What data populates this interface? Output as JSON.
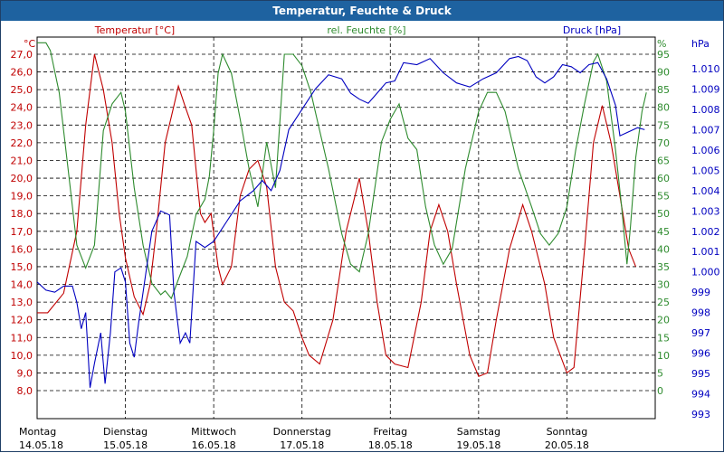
{
  "window": {
    "title": "Temperatur, Feuchte & Druck"
  },
  "colors": {
    "temperature": "#c00000",
    "humidity": "#2e8b2e",
    "pressure": "#0000c0",
    "grid": "#000000"
  },
  "chart_data": {
    "type": "line",
    "title": "Temperatur, Feuchte & Druck",
    "grid": true,
    "axes": {
      "temperature": {
        "label": "Temperatur [°C]",
        "unit": "°C",
        "range": [
          8.0,
          27.0
        ],
        "ticks": [
          "8,0",
          "9,0",
          "10,0",
          "11,0",
          "12,0",
          "13,0",
          "14,0",
          "15,0",
          "16,0",
          "17,0",
          "18,0",
          "19,0",
          "20,0",
          "21,0",
          "22,0",
          "23,0",
          "24,0",
          "25,0",
          "26,0",
          "27,0"
        ]
      },
      "humidity": {
        "label": "rel. Feuchte [%]",
        "unit": "%",
        "range": [
          0,
          95
        ],
        "ticks": [
          "0",
          "5",
          "10",
          "15",
          "20",
          "25",
          "30",
          "35",
          "40",
          "45",
          "50",
          "55",
          "60",
          "65",
          "70",
          "75",
          "80",
          "85",
          "90",
          "95"
        ]
      },
      "pressure": {
        "label": "Druck [hPa]",
        "unit": "hPa",
        "range": [
          993,
          1010
        ],
        "ticks": [
          "993",
          "994",
          "995",
          "996",
          "997",
          "998",
          "999",
          "1.000",
          "1.001",
          "1.002",
          "1.003",
          "1.004",
          "1.005",
          "1.006",
          "1.007",
          "1.008",
          "1.009",
          "1.010"
        ]
      }
    },
    "days": [
      {
        "name": "Montag",
        "date": "14.05.18"
      },
      {
        "name": "Dienstag",
        "date": "15.05.18"
      },
      {
        "name": "Mittwoch",
        "date": "16.05.18"
      },
      {
        "name": "Donnerstag",
        "date": "17.05.18"
      },
      {
        "name": "Freitag",
        "date": "18.05.18"
      },
      {
        "name": "Samstag",
        "date": "19.05.18"
      },
      {
        "name": "Sonntag",
        "date": "20.05.18"
      }
    ],
    "x_range_days": [
      0,
      7
    ],
    "series": [
      {
        "name": "Temperatur [°C]",
        "axis": "temperature",
        "points": [
          [
            0,
            12.4
          ],
          [
            0.12,
            12.4
          ],
          [
            0.3,
            13.5
          ],
          [
            0.45,
            17
          ],
          [
            0.55,
            23
          ],
          [
            0.65,
            27
          ],
          [
            0.75,
            25
          ],
          [
            0.85,
            22
          ],
          [
            0.93,
            18
          ],
          [
            1.0,
            15.5
          ],
          [
            1.1,
            13.3
          ],
          [
            1.2,
            12.3
          ],
          [
            1.28,
            14
          ],
          [
            1.35,
            17
          ],
          [
            1.45,
            22
          ],
          [
            1.55,
            24.1
          ],
          [
            1.6,
            25.2
          ],
          [
            1.68,
            24
          ],
          [
            1.75,
            23
          ],
          [
            1.8,
            20.5
          ],
          [
            1.85,
            18
          ],
          [
            1.9,
            17.5
          ],
          [
            1.97,
            18
          ],
          [
            2.05,
            15
          ],
          [
            2.1,
            14
          ],
          [
            2.2,
            15
          ],
          [
            2.3,
            19
          ],
          [
            2.4,
            20.5
          ],
          [
            2.5,
            21
          ],
          [
            2.6,
            19.5
          ],
          [
            2.7,
            15
          ],
          [
            2.8,
            13
          ],
          [
            2.9,
            12.5
          ],
          [
            3.0,
            11
          ],
          [
            3.08,
            10
          ],
          [
            3.2,
            9.5
          ],
          [
            3.35,
            12
          ],
          [
            3.5,
            17
          ],
          [
            3.65,
            20
          ],
          [
            3.75,
            17
          ],
          [
            3.85,
            13
          ],
          [
            3.95,
            10
          ],
          [
            4.05,
            9.5
          ],
          [
            4.2,
            9.3
          ],
          [
            4.35,
            13
          ],
          [
            4.45,
            17
          ],
          [
            4.55,
            18.5
          ],
          [
            4.65,
            17
          ],
          [
            4.75,
            14
          ],
          [
            4.9,
            10
          ],
          [
            5.0,
            8.8
          ],
          [
            5.1,
            9
          ],
          [
            5.2,
            12
          ],
          [
            5.35,
            16
          ],
          [
            5.5,
            18.5
          ],
          [
            5.6,
            17
          ],
          [
            5.75,
            14
          ],
          [
            5.85,
            11
          ],
          [
            6.0,
            9.0
          ],
          [
            6.08,
            9.3
          ],
          [
            6.2,
            16
          ],
          [
            6.3,
            22
          ],
          [
            6.4,
            24.1
          ],
          [
            6.5,
            22
          ],
          [
            6.6,
            19
          ],
          [
            6.7,
            16
          ],
          [
            6.78,
            15
          ]
        ]
      },
      {
        "name": "rel. Feuchte [%]",
        "axis": "humidity",
        "points": [
          [
            0,
            98
          ],
          [
            0.1,
            98
          ],
          [
            0.15,
            96
          ],
          [
            0.25,
            85
          ],
          [
            0.35,
            65
          ],
          [
            0.45,
            45
          ],
          [
            0.55,
            39
          ],
          [
            0.65,
            45
          ],
          [
            0.75,
            75
          ],
          [
            0.85,
            82
          ],
          [
            0.95,
            85
          ],
          [
            1.0,
            80
          ],
          [
            1.1,
            60
          ],
          [
            1.2,
            45
          ],
          [
            1.3,
            35
          ],
          [
            1.4,
            32
          ],
          [
            1.45,
            33
          ],
          [
            1.52,
            31
          ],
          [
            1.6,
            36
          ],
          [
            1.7,
            42
          ],
          [
            1.8,
            53
          ],
          [
            1.9,
            57
          ],
          [
            1.95,
            63
          ],
          [
            2.0,
            75
          ],
          [
            2.05,
            90
          ],
          [
            2.1,
            95
          ],
          [
            2.2,
            90
          ],
          [
            2.3,
            78
          ],
          [
            2.4,
            65
          ],
          [
            2.5,
            55
          ],
          [
            2.6,
            72
          ],
          [
            2.7,
            60
          ],
          [
            2.8,
            95
          ],
          [
            2.9,
            95
          ],
          [
            3.0,
            92
          ],
          [
            3.1,
            85
          ],
          [
            3.2,
            75
          ],
          [
            3.3,
            65
          ],
          [
            3.45,
            48
          ],
          [
            3.55,
            40
          ],
          [
            3.65,
            38
          ],
          [
            3.75,
            48
          ],
          [
            3.9,
            72
          ],
          [
            4.0,
            78
          ],
          [
            4.1,
            82
          ],
          [
            4.2,
            73
          ],
          [
            4.3,
            70
          ],
          [
            4.4,
            55
          ],
          [
            4.5,
            45
          ],
          [
            4.6,
            40
          ],
          [
            4.7,
            44
          ],
          [
            4.85,
            65
          ],
          [
            5.0,
            80
          ],
          [
            5.1,
            85
          ],
          [
            5.2,
            85
          ],
          [
            5.3,
            80
          ],
          [
            5.45,
            65
          ],
          [
            5.6,
            55
          ],
          [
            5.7,
            48
          ],
          [
            5.8,
            45
          ],
          [
            5.9,
            48
          ],
          [
            6.0,
            55
          ],
          [
            6.1,
            70
          ],
          [
            6.2,
            82
          ],
          [
            6.3,
            93
          ],
          [
            6.35,
            95
          ],
          [
            6.45,
            88
          ],
          [
            6.55,
            70
          ],
          [
            6.62,
            55
          ],
          [
            6.68,
            40
          ],
          [
            6.72,
            50
          ],
          [
            6.78,
            68
          ],
          [
            6.85,
            80
          ],
          [
            6.9,
            85
          ]
        ]
      },
      {
        "name": "Druck [hPa]",
        "axis": "pressure",
        "points": [
          [
            0,
            999.5
          ],
          [
            0.1,
            999.1
          ],
          [
            0.2,
            999
          ],
          [
            0.3,
            999.3
          ],
          [
            0.4,
            999.3
          ],
          [
            0.45,
            998.5
          ],
          [
            0.5,
            997.2
          ],
          [
            0.55,
            998
          ],
          [
            0.6,
            994.3
          ],
          [
            0.65,
            995.5
          ],
          [
            0.72,
            997
          ],
          [
            0.77,
            994.5
          ],
          [
            0.83,
            997
          ],
          [
            0.88,
            1000
          ],
          [
            0.95,
            1000.2
          ],
          [
            1.0,
            999.5
          ],
          [
            1.05,
            996.5
          ],
          [
            1.1,
            995.8
          ],
          [
            1.15,
            997.5
          ],
          [
            1.2,
            999
          ],
          [
            1.3,
            1002
          ],
          [
            1.4,
            1003
          ],
          [
            1.5,
            1002.8
          ],
          [
            1.55,
            999
          ],
          [
            1.62,
            996.5
          ],
          [
            1.68,
            997
          ],
          [
            1.73,
            996.5
          ],
          [
            1.8,
            1001.5
          ],
          [
            1.9,
            1001.2
          ],
          [
            2.0,
            1001.5
          ],
          [
            2.15,
            1002.5
          ],
          [
            2.3,
            1003.5
          ],
          [
            2.45,
            1004
          ],
          [
            2.55,
            1004.5
          ],
          [
            2.65,
            1004
          ],
          [
            2.75,
            1005
          ],
          [
            2.85,
            1007
          ],
          [
            3.0,
            1008
          ],
          [
            3.15,
            1009
          ],
          [
            3.3,
            1009.7
          ],
          [
            3.45,
            1009.5
          ],
          [
            3.55,
            1008.8
          ],
          [
            3.65,
            1008.5
          ],
          [
            3.75,
            1008.3
          ],
          [
            3.85,
            1008.8
          ],
          [
            3.95,
            1009.3
          ],
          [
            4.05,
            1009.4
          ],
          [
            4.15,
            1010.3
          ],
          [
            4.3,
            1010.2
          ],
          [
            4.45,
            1010.5
          ],
          [
            4.6,
            1009.8
          ],
          [
            4.75,
            1009.3
          ],
          [
            4.9,
            1009.1
          ],
          [
            5.05,
            1009.5
          ],
          [
            5.2,
            1009.8
          ],
          [
            5.35,
            1010.5
          ],
          [
            5.45,
            1010.6
          ],
          [
            5.55,
            1010.4
          ],
          [
            5.65,
            1009.6
          ],
          [
            5.75,
            1009.3
          ],
          [
            5.85,
            1009.6
          ],
          [
            5.95,
            1010.2
          ],
          [
            6.05,
            1010.1
          ],
          [
            6.15,
            1009.8
          ],
          [
            6.25,
            1010.2
          ],
          [
            6.35,
            1010.3
          ],
          [
            6.45,
            1009.5
          ],
          [
            6.55,
            1008.2
          ],
          [
            6.6,
            1006.7
          ],
          [
            6.7,
            1006.9
          ],
          [
            6.8,
            1007.1
          ],
          [
            6.88,
            1007.0
          ]
        ]
      }
    ]
  }
}
